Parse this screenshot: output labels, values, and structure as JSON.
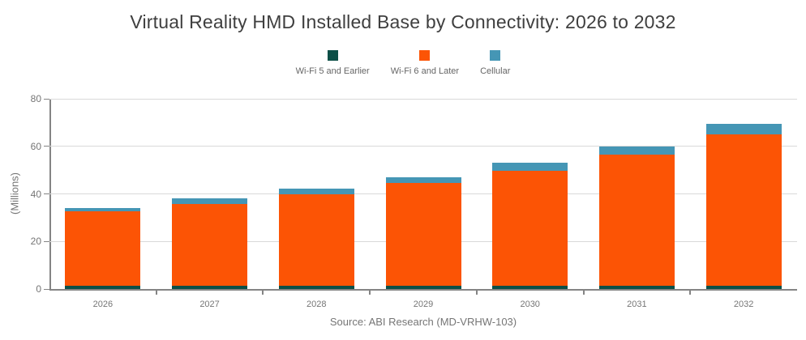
{
  "title": "Virtual Reality HMD Installed Base by Connectivity: 2026 to 2032",
  "source": "Source: ABI Research (MD-VRHW-103)",
  "legend": {
    "items": [
      {
        "id": "wifi5",
        "label": "Wi-Fi 5 and Earlier",
        "color": "#0c4f47"
      },
      {
        "id": "wifi6",
        "label": "Wi-Fi 6 and Later",
        "color": "#fc5405"
      },
      {
        "id": "cellular",
        "label": "Cellular",
        "color": "#4596b5"
      }
    ]
  },
  "chart_data": {
    "type": "bar",
    "stacked": true,
    "title": "Virtual Reality HMD Installed Base by Connectivity: 2026 to 2032",
    "categories": [
      "2026",
      "2027",
      "2028",
      "2029",
      "2030",
      "2031",
      "2032"
    ],
    "series": [
      {
        "name": "Wi-Fi 5 and Earlier",
        "color": "#0c4f47",
        "values": [
          1.3,
          1.3,
          1.3,
          1.3,
          1.3,
          1.3,
          1.3
        ]
      },
      {
        "name": "Wi-Fi 6 and Later",
        "color": "#fc5405",
        "values": [
          31.3,
          34.6,
          38.7,
          43.2,
          48.3,
          55.2,
          63.6
        ]
      },
      {
        "name": "Cellular",
        "color": "#4596b5",
        "values": [
          1.6,
          2.2,
          2.1,
          2.4,
          3.5,
          3.4,
          4.7
        ]
      }
    ],
    "totals": [
      34.2,
      38.1,
      42.1,
      46.9,
      53.1,
      59.9,
      69.6
    ],
    "xlabel": "",
    "ylabel": "(Millions)",
    "ylim": [
      0,
      80
    ],
    "yticks": [
      0,
      20,
      40,
      60,
      80
    ],
    "grid": true,
    "legend_position": "top",
    "colors": {
      "axis": "#848484",
      "gridline": "#d9d9d9",
      "tick_text": "#757575"
    }
  }
}
